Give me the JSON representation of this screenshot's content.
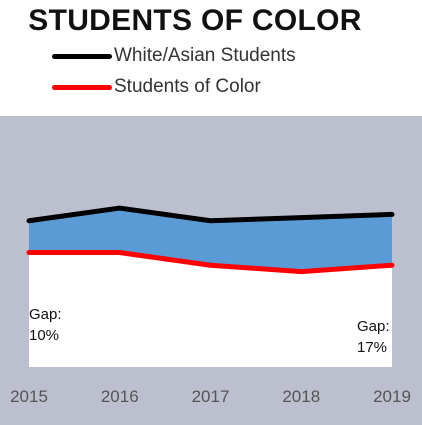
{
  "chart_data": {
    "type": "line",
    "title": "STUDENTS OF COLOR",
    "x": [
      "2015",
      "2016",
      "2017",
      "2018",
      "2019"
    ],
    "series": [
      {
        "name": "White/Asian Students",
        "color": "#000000",
        "values": [
          87,
          91,
          87,
          88,
          89
        ]
      },
      {
        "name": "Students of Color",
        "color": "#ff0000",
        "values": [
          77,
          77,
          73,
          71,
          73
        ]
      }
    ],
    "fill_between_color": "#5b9bd5",
    "plot_background": "#bcbfce",
    "below_fill_color": "#ffffff",
    "ylim": [
      40,
      120
    ],
    "grid": false,
    "legend_placement": "top-left",
    "annotations": [
      {
        "line1": "Gap:",
        "line2": "10%"
      },
      {
        "line1": "Gap:",
        "line2": "17%"
      }
    ]
  }
}
